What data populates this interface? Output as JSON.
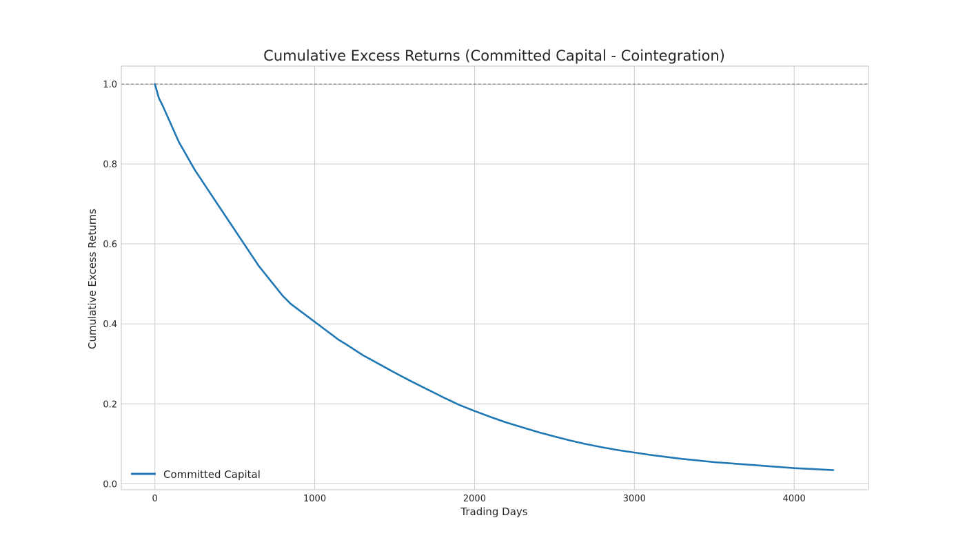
{
  "chart_data": {
    "type": "line",
    "title": "Cumulative Excess Returns (Committed Capital - Cointegration)",
    "xlabel": "Trading Days",
    "ylabel": "Cumulative Excess Returns",
    "xlim": [
      -210,
      4465
    ],
    "ylim": [
      -0.015,
      1.045
    ],
    "xticks": [
      0,
      1000,
      2000,
      3000,
      4000
    ],
    "xtick_labels": [
      "0",
      "1000",
      "2000",
      "3000",
      "4000"
    ],
    "yticks": [
      0.0,
      0.2,
      0.4,
      0.6,
      0.8,
      1.0
    ],
    "ytick_labels": [
      "0.0",
      "0.2",
      "0.4",
      "0.6",
      "0.8",
      "1.0"
    ],
    "grid": true,
    "legend_position": "lower-left",
    "reference_line": {
      "y": 1.0,
      "style": "dashed",
      "color": "#808080"
    },
    "series": [
      {
        "name": "Committed Capital",
        "color": "#1f77b4",
        "x": [
          0,
          25,
          50,
          100,
          150,
          200,
          250,
          300,
          350,
          400,
          450,
          500,
          550,
          600,
          650,
          700,
          750,
          800,
          850,
          900,
          950,
          1000,
          1050,
          1100,
          1150,
          1200,
          1300,
          1400,
          1500,
          1600,
          1700,
          1800,
          1900,
          2000,
          2100,
          2200,
          2300,
          2400,
          2500,
          2600,
          2700,
          2800,
          2900,
          3000,
          3100,
          3200,
          3300,
          3400,
          3500,
          3600,
          3700,
          3800,
          3900,
          4000,
          4100,
          4245
        ],
        "y": [
          1.0,
          0.965,
          0.945,
          0.9,
          0.855,
          0.82,
          0.785,
          0.755,
          0.725,
          0.695,
          0.665,
          0.635,
          0.605,
          0.575,
          0.545,
          0.52,
          0.495,
          0.47,
          0.45,
          0.435,
          0.42,
          0.405,
          0.39,
          0.375,
          0.36,
          0.348,
          0.322,
          0.3,
          0.278,
          0.257,
          0.237,
          0.217,
          0.198,
          0.182,
          0.167,
          0.153,
          0.141,
          0.129,
          0.118,
          0.108,
          0.099,
          0.091,
          0.084,
          0.078,
          0.072,
          0.067,
          0.062,
          0.058,
          0.054,
          0.051,
          0.048,
          0.045,
          0.042,
          0.039,
          0.037,
          0.034
        ]
      }
    ]
  }
}
